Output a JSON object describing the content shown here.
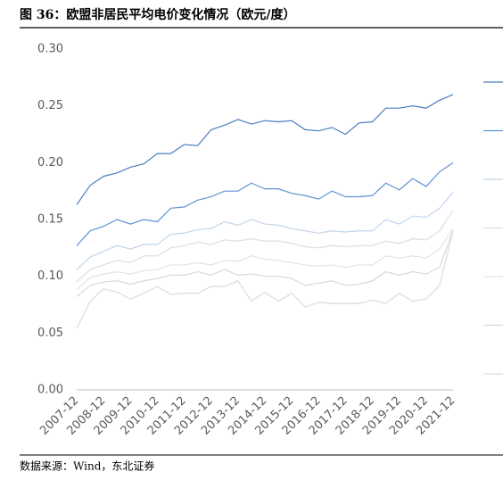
{
  "chart_data": {
    "type": "line",
    "title": "图 36：欧盟非居民平均电价变化情况（欧元/度）",
    "source": "数据来源：Wind，东北证券",
    "categories": [
      "2007-12",
      null,
      "2008-12",
      null,
      "2009-12",
      null,
      "2010-12",
      null,
      "2011-12",
      null,
      "2012-12",
      null,
      "2013-12",
      null,
      "2014-12",
      null,
      "2015-12",
      null,
      "2016-12",
      null,
      "2017-12",
      null,
      "2018-12",
      null,
      "2019-12",
      null,
      "2020-12",
      null,
      "2021-12"
    ],
    "series": [
      {
        "color": "#4a7ebf",
        "values": [
          0.163,
          0.18,
          0.188,
          0.191,
          0.196,
          0.199,
          0.208,
          0.208,
          0.216,
          0.215,
          0.229,
          0.233,
          0.238,
          0.234,
          0.237,
          0.236,
          0.237,
          0.229,
          0.228,
          0.231,
          0.225,
          0.235,
          0.236,
          0.248,
          0.248,
          0.25,
          0.248,
          0.255,
          0.26
        ]
      },
      {
        "color": "#5f93d2",
        "values": [
          0.127,
          0.14,
          0.144,
          0.15,
          0.146,
          0.15,
          0.148,
          0.16,
          0.161,
          0.167,
          0.17,
          0.175,
          0.175,
          0.182,
          0.177,
          0.177,
          0.173,
          0.171,
          0.168,
          0.175,
          0.17,
          0.17,
          0.171,
          0.182,
          0.176,
          0.186,
          0.179,
          0.192,
          0.2
        ]
      },
      {
        "color": "#c3d5eb",
        "values": [
          0.106,
          0.117,
          0.122,
          0.127,
          0.124,
          0.128,
          0.128,
          0.137,
          0.138,
          0.141,
          0.142,
          0.148,
          0.145,
          0.15,
          0.146,
          0.145,
          0.142,
          0.14,
          0.138,
          0.14,
          0.139,
          0.14,
          0.14,
          0.15,
          0.146,
          0.153,
          0.152,
          0.16,
          0.174
        ]
      },
      {
        "color": "#dedede",
        "values": [
          0.095,
          0.106,
          0.11,
          0.114,
          0.112,
          0.118,
          0.118,
          0.125,
          0.127,
          0.13,
          0.128,
          0.132,
          0.131,
          0.133,
          0.131,
          0.131,
          0.129,
          0.126,
          0.125,
          0.127,
          0.126,
          0.127,
          0.127,
          0.131,
          0.129,
          0.133,
          0.132,
          0.14,
          0.158
        ]
      },
      {
        "color": "#e2e2e2",
        "values": [
          0.088,
          0.099,
          0.102,
          0.104,
          0.102,
          0.105,
          0.106,
          0.11,
          0.11,
          0.112,
          0.11,
          0.114,
          0.113,
          0.118,
          0.115,
          0.114,
          0.112,
          0.11,
          0.109,
          0.11,
          0.108,
          0.11,
          0.11,
          0.118,
          0.116,
          0.118,
          0.116,
          0.124,
          0.142
        ]
      },
      {
        "color": "#d8d8d8",
        "values": [
          0.082,
          0.092,
          0.095,
          0.096,
          0.093,
          0.096,
          0.098,
          0.101,
          0.101,
          0.104,
          0.101,
          0.106,
          0.101,
          0.102,
          0.1,
          0.1,
          0.098,
          0.092,
          0.094,
          0.096,
          0.092,
          0.093,
          0.096,
          0.104,
          0.101,
          0.104,
          0.102,
          0.108,
          0.14
        ]
      },
      {
        "color": "#dcdcdc",
        "values": [
          0.054,
          0.078,
          0.089,
          0.086,
          0.08,
          0.085,
          0.091,
          0.084,
          0.085,
          0.085,
          0.091,
          0.091,
          0.096,
          0.078,
          0.086,
          0.078,
          0.085,
          0.073,
          0.077,
          0.076,
          0.076,
          0.076,
          0.079,
          0.076,
          0.085,
          0.078,
          0.08,
          0.092,
          0.14
        ]
      }
    ],
    "ylim": [
      0,
      0.3
    ],
    "yticks": [
      {
        "value": 0,
        "label": "0.00"
      },
      {
        "value": 0.05,
        "label": "0.05"
      },
      {
        "value": 0.1,
        "label": "0.10"
      },
      {
        "value": 0.15,
        "label": "0.15"
      },
      {
        "value": 0.2,
        "label": "0.20"
      },
      {
        "value": 0.25,
        "label": "0.25"
      },
      {
        "value": 0.3,
        "label": "0.30"
      }
    ],
    "grid": false
  }
}
